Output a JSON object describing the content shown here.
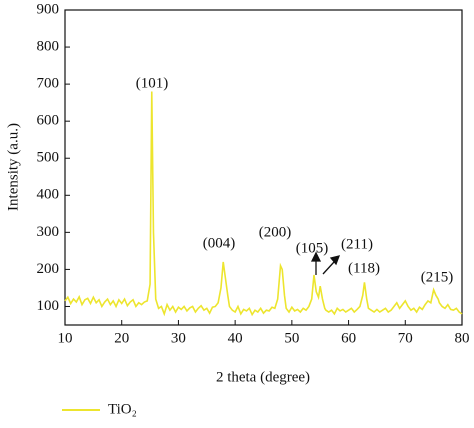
{
  "chart_data": {
    "type": "line",
    "x_label": "2 theta (degree)",
    "y_label": "Intensity (a.u.)",
    "xlim": [
      10,
      80
    ],
    "xticks": [
      10,
      20,
      30,
      40,
      50,
      60,
      70,
      80
    ],
    "ylim": [
      50,
      900
    ],
    "yticks": [
      100,
      200,
      300,
      400,
      500,
      600,
      700,
      800,
      900
    ],
    "x": [
      10,
      10.5,
      11,
      11.5,
      12,
      12.5,
      13,
      13.5,
      14,
      14.5,
      15,
      15.5,
      16,
      16.5,
      17,
      17.5,
      18,
      18.5,
      19,
      19.5,
      20,
      20.5,
      21,
      21.5,
      22,
      22.5,
      23,
      23.5,
      24,
      24.5,
      25,
      25.3,
      25.6,
      26,
      26.5,
      27,
      27.5,
      28,
      28.5,
      29,
      29.5,
      30,
      30.5,
      31,
      31.5,
      32,
      32.5,
      33,
      33.5,
      34,
      34.5,
      35,
      35.5,
      36,
      36.5,
      37,
      37.5,
      37.9,
      38.3,
      38.7,
      39,
      39.5,
      40,
      40.5,
      41,
      41.5,
      42,
      42.5,
      43,
      43.5,
      44,
      44.5,
      45,
      45.5,
      46,
      46.5,
      47,
      47.5,
      48,
      48.3,
      48.7,
      49,
      49.5,
      50,
      50.5,
      51,
      51.5,
      52,
      52.5,
      53,
      53.5,
      53.9,
      54.3,
      54.7,
      55,
      55.4,
      55.8,
      56,
      56.5,
      57,
      57.5,
      58,
      58.5,
      59,
      59.5,
      60,
      60.5,
      61,
      61.5,
      62,
      62.5,
      62.8,
      63.2,
      63.5,
      64,
      64.5,
      65,
      65.5,
      66,
      66.5,
      67,
      67.5,
      68,
      68.5,
      69,
      69.5,
      70,
      70.5,
      71,
      71.5,
      72,
      72.5,
      73,
      73.5,
      74,
      74.5,
      75,
      75.4,
      75.8,
      76,
      76.5,
      77,
      77.5,
      78,
      78.5,
      79,
      79.5,
      80
    ],
    "series": [
      {
        "name": "TiO₂",
        "color": "#ede52e",
        "values": [
          115,
          125,
          108,
          120,
          112,
          126,
          105,
          118,
          122,
          108,
          125,
          110,
          118,
          100,
          112,
          120,
          105,
          115,
          100,
          118,
          108,
          120,
          102,
          112,
          118,
          100,
          110,
          105,
          112,
          115,
          160,
          680,
          300,
          120,
          95,
          100,
          80,
          105,
          90,
          100,
          85,
          98,
          92,
          100,
          88,
          96,
          100,
          85,
          95,
          102,
          90,
          95,
          82,
          98,
          100,
          110,
          150,
          220,
          175,
          130,
          100,
          90,
          85,
          100,
          80,
          92,
          88,
          95,
          78,
          90,
          85,
          95,
          82,
          90,
          88,
          98,
          95,
          120,
          210,
          200,
          130,
          95,
          85,
          98,
          88,
          92,
          85,
          95,
          90,
          100,
          120,
          185,
          140,
          125,
          155,
          120,
          95,
          90,
          85,
          90,
          80,
          95,
          88,
          92,
          85,
          90,
          95,
          85,
          92,
          100,
          130,
          165,
          120,
          95,
          90,
          85,
          92,
          85,
          90,
          95,
          85,
          90,
          100,
          110,
          95,
          105,
          115,
          100,
          90,
          95,
          85,
          98,
          92,
          105,
          115,
          110,
          145,
          130,
          120,
          110,
          100,
          95,
          105,
          92,
          90,
          95,
          85,
          80
        ]
      }
    ],
    "annotations": [
      "(101)",
      "(004)",
      "(200)",
      "(105)",
      "(211)",
      "(118)",
      "(215)"
    ]
  }
}
